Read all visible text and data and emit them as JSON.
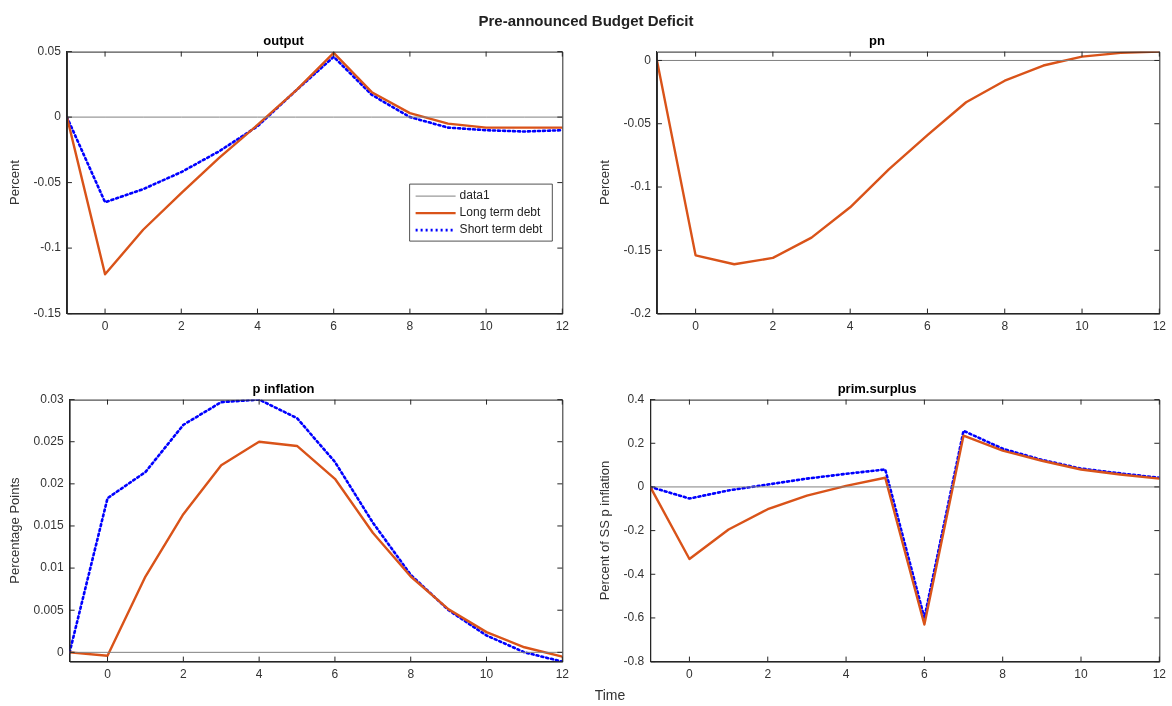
{
  "chart_data": [
    {
      "type": "line",
      "title": "output",
      "ylabel": "Percent",
      "annotations": [
        "Pre-announced Budget Deficit"
      ],
      "x": [
        -1,
        0,
        1,
        2,
        3,
        4,
        5,
        6,
        7,
        8,
        9,
        10,
        11,
        12
      ],
      "xlim": [
        -1,
        12
      ],
      "xticks": [
        0,
        2,
        4,
        6,
        8,
        10,
        12
      ],
      "ylim": [
        -0.15,
        0.05
      ],
      "yticks": [
        -0.15,
        -0.1,
        -0.05,
        0,
        0.05
      ],
      "grid": false,
      "legend": "right",
      "marker": "none",
      "series": [
        {
          "name": "data1",
          "color": "#808080",
          "line_style": "solid",
          "values": [
            0,
            0,
            0,
            0,
            0,
            0,
            0,
            0,
            0,
            0,
            0,
            0,
            0,
            0
          ]
        },
        {
          "name": "Long term debt",
          "color": "#d95319",
          "line_style": "solid",
          "values": [
            0,
            -0.12,
            -0.086,
            -0.058,
            -0.031,
            -0.006,
            0.02,
            0.049,
            0.019,
            0.003,
            -0.005,
            -0.008,
            -0.008,
            -0.008
          ]
        },
        {
          "name": "Short term debt",
          "color": "#0000ff",
          "line_style": "dotted",
          "values": [
            0,
            -0.065,
            -0.055,
            -0.042,
            -0.026,
            -0.007,
            0.02,
            0.046,
            0.017,
            0,
            -0.008,
            -0.01,
            -0.011,
            -0.01
          ]
        }
      ]
    },
    {
      "type": "line",
      "title": "pn",
      "ylabel": "Percent",
      "x": [
        -1,
        0,
        1,
        2,
        3,
        4,
        5,
        6,
        7,
        8,
        9,
        10,
        11,
        12
      ],
      "xlim": [
        -1,
        12
      ],
      "xticks": [
        0,
        2,
        4,
        6,
        8,
        10,
        12
      ],
      "ylim": [
        -0.2,
        0.007
      ],
      "yticks": [
        -0.2,
        -0.15,
        -0.1,
        -0.05,
        0
      ],
      "grid": false,
      "marker": "none",
      "ref_lines": [
        {
          "axis": "y",
          "value": 0,
          "color": "#808080"
        }
      ],
      "series": [
        {
          "color": "#d95319",
          "line_style": "solid",
          "values": [
            0,
            -0.154,
            -0.161,
            -0.156,
            -0.14,
            -0.116,
            -0.086,
            -0.059,
            -0.033,
            -0.016,
            -0.004,
            0.003,
            0.006,
            0.007
          ]
        }
      ]
    },
    {
      "type": "line",
      "title": "p inflation",
      "ylabel": "Percentage Points",
      "xlabel": "Time",
      "x": [
        -1,
        0,
        1,
        2,
        3,
        4,
        5,
        6,
        7,
        8,
        9,
        10,
        11,
        12
      ],
      "xlim": [
        -1,
        12
      ],
      "xticks": [
        0,
        2,
        4,
        6,
        8,
        10,
        12
      ],
      "ylim": [
        -0.0011,
        0.03
      ],
      "yticks": [
        0,
        0.005,
        0.01,
        0.015,
        0.02,
        0.025,
        0.03
      ],
      "grid": false,
      "marker": "none",
      "ref_lines": [
        {
          "axis": "y",
          "value": 0,
          "color": "#808080"
        }
      ],
      "series": [
        {
          "color": "#d95319",
          "line_style": "solid",
          "values": [
            0,
            -0.0004,
            0.009,
            0.0164,
            0.0222,
            0.025,
            0.0245,
            0.0206,
            0.0142,
            0.009,
            0.0051,
            0.0024,
            0.0006,
            -0.0005
          ]
        },
        {
          "color": "#0000ff",
          "line_style": "dotted",
          "values": [
            0,
            0.0183,
            0.0214,
            0.027,
            0.0297,
            0.03,
            0.0278,
            0.0226,
            0.0154,
            0.0092,
            0.005,
            0.002,
            0,
            -0.0011
          ]
        }
      ]
    },
    {
      "type": "line",
      "title": "prim.surplus",
      "ylabel": "Percent of SS p inflation",
      "x": [
        -1,
        0,
        1,
        2,
        3,
        4,
        5,
        6,
        7,
        8,
        9,
        10,
        11,
        12
      ],
      "xlim": [
        -1,
        12
      ],
      "xticks": [
        0,
        2,
        4,
        6,
        8,
        10,
        12
      ],
      "ylim": [
        -0.8,
        0.4
      ],
      "yticks": [
        -0.8,
        -0.6,
        -0.4,
        -0.2,
        0,
        0.2,
        0.4
      ],
      "grid": false,
      "marker": "none",
      "ref_lines": [
        {
          "axis": "y",
          "value": 0,
          "color": "#808080"
        }
      ],
      "series": [
        {
          "color": "#d95319",
          "line_style": "solid",
          "values": [
            0,
            -0.33,
            -0.195,
            -0.102,
            -0.04,
            0.005,
            0.042,
            -0.63,
            0.235,
            0.166,
            0.12,
            0.08,
            0.057,
            0.038
          ]
        },
        {
          "color": "#0000ff",
          "line_style": "dotted",
          "values": [
            0,
            -0.053,
            -0.016,
            0.011,
            0.038,
            0.06,
            0.08,
            -0.6,
            0.257,
            0.175,
            0.124,
            0.084,
            0.062,
            0.042
          ]
        }
      ]
    }
  ]
}
